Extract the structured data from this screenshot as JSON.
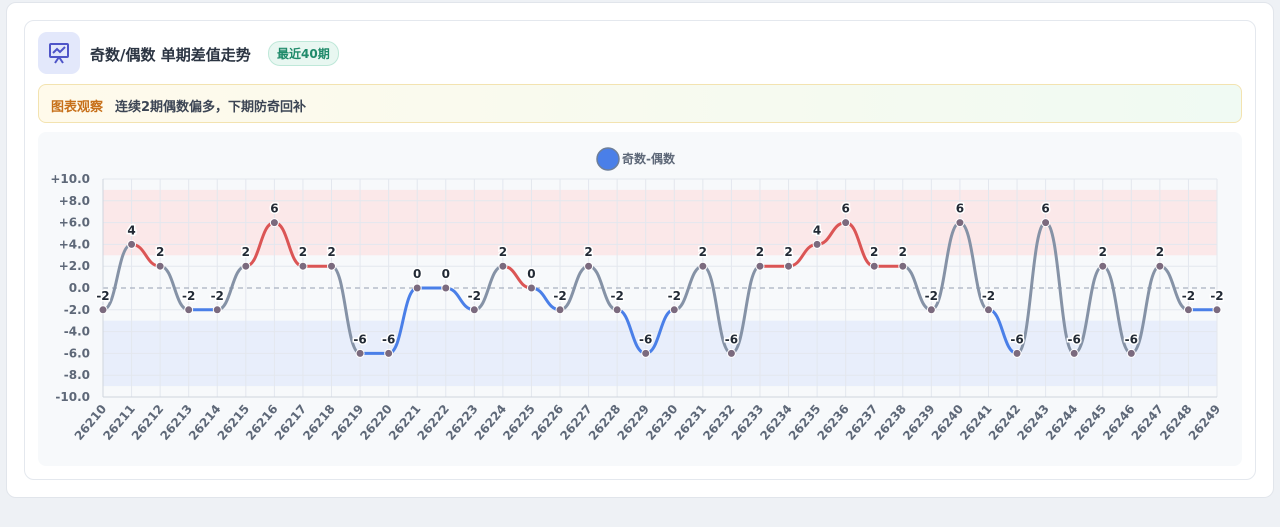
{
  "header": {
    "title": "奇数/偶数 单期差值走势",
    "badge": "最近40期"
  },
  "observation": {
    "label": "图表观察",
    "text": "连续2期偶数偏多，下期防奇回补"
  },
  "chart_data": {
    "type": "line",
    "categories": [
      "26210",
      "26211",
      "26212",
      "26213",
      "26214",
      "26215",
      "26216",
      "26217",
      "26218",
      "26219",
      "26220",
      "26221",
      "26222",
      "26223",
      "26224",
      "26225",
      "26226",
      "26227",
      "26228",
      "26229",
      "26230",
      "26231",
      "26232",
      "26233",
      "26234",
      "26235",
      "26236",
      "26237",
      "26238",
      "26239",
      "26240",
      "26241",
      "26242",
      "26243",
      "26244",
      "26245",
      "26246",
      "26247",
      "26248",
      "26249"
    ],
    "series": [
      {
        "name": "奇数-偶数",
        "color": "#4a7fe8",
        "up_color": "#db5555",
        "mixed_color": "#8592a6",
        "values": [
          -2,
          4,
          2,
          -2,
          -2,
          2,
          6,
          2,
          2,
          -6,
          -6,
          0,
          0,
          -2,
          2,
          0,
          -2,
          2,
          -2,
          -6,
          -2,
          2,
          -6,
          2,
          2,
          4,
          6,
          2,
          2,
          -2,
          6,
          -2,
          -6,
          6,
          -6,
          2,
          -6,
          2,
          -2,
          -2
        ]
      }
    ],
    "ylim": [
      -10,
      10
    ],
    "yticks": [
      {
        "value": -10,
        "label": "-10.0"
      },
      {
        "value": -8,
        "label": "-8.0"
      },
      {
        "value": -6,
        "label": "-6.0"
      },
      {
        "value": -4,
        "label": "-4.0"
      },
      {
        "value": -2,
        "label": "-2.0"
      },
      {
        "value": 0,
        "label": "0.0"
      },
      {
        "value": 2,
        "label": "+2.0"
      },
      {
        "value": 4,
        "label": "+4.0"
      },
      {
        "value": 6,
        "label": "+6.0"
      },
      {
        "value": 8,
        "label": "+8.0"
      },
      {
        "value": 10,
        "label": "+10.0"
      }
    ],
    "bands": [
      {
        "from": 3,
        "to": 9,
        "color": "#fbe3e5"
      },
      {
        "from": -9,
        "to": -3,
        "color": "#e4ebfb"
      }
    ],
    "grid": true
  }
}
